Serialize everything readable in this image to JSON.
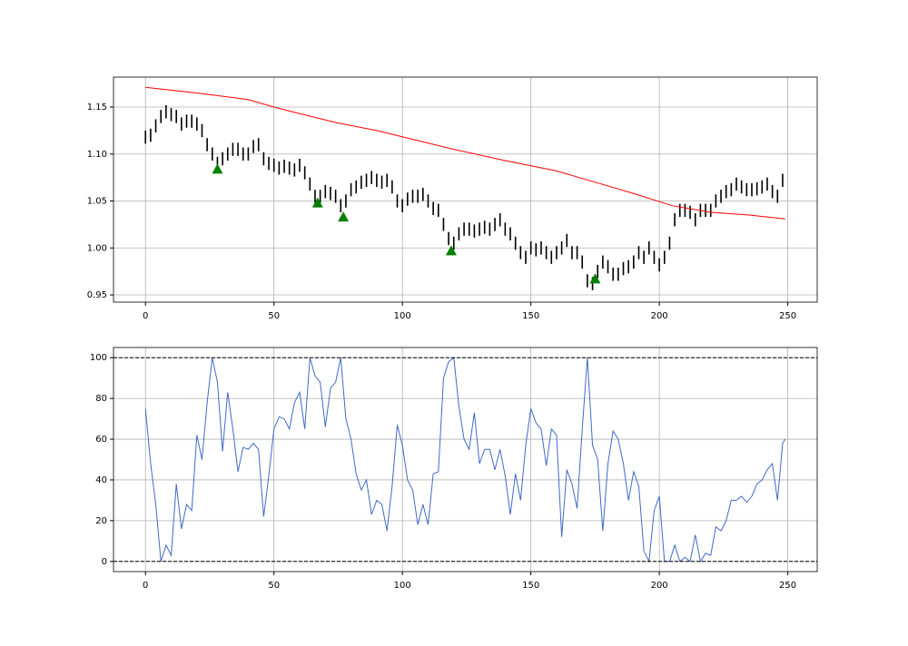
{
  "chart_data": [
    {
      "type": "ohlc",
      "color": "#000000",
      "x": [
        0,
        2,
        4,
        6,
        8,
        10,
        12,
        14,
        16,
        18,
        20,
        22,
        24,
        26,
        28,
        30,
        32,
        34,
        36,
        38,
        40,
        42,
        44,
        46,
        48,
        50,
        52,
        54,
        56,
        58,
        60,
        62,
        64,
        66,
        68,
        70,
        72,
        74,
        76,
        78,
        80,
        82,
        84,
        86,
        88,
        90,
        92,
        94,
        96,
        98,
        100,
        102,
        104,
        106,
        108,
        110,
        112,
        114,
        116,
        118,
        120,
        122,
        124,
        126,
        128,
        130,
        132,
        134,
        136,
        138,
        140,
        142,
        144,
        146,
        148,
        150,
        152,
        154,
        156,
        158,
        160,
        162,
        164,
        166,
        168,
        170,
        172,
        174,
        176,
        178,
        180,
        182,
        184,
        186,
        188,
        190,
        192,
        194,
        196,
        198,
        200,
        202,
        204,
        206,
        208,
        210,
        212,
        214,
        216,
        218,
        220,
        222,
        224,
        226,
        228,
        230,
        232,
        234,
        236,
        238,
        240,
        242,
        244,
        246,
        248
      ],
      "low": [
        1.111,
        1.113,
        1.123,
        1.133,
        1.138,
        1.135,
        1.133,
        1.125,
        1.128,
        1.128,
        1.125,
        1.118,
        1.103,
        1.093,
        1.083,
        1.088,
        1.093,
        1.098,
        1.098,
        1.093,
        1.093,
        1.101,
        1.103,
        1.088,
        1.083,
        1.081,
        1.078,
        1.08,
        1.078,
        1.076,
        1.081,
        1.073,
        1.061,
        1.048,
        1.048,
        1.053,
        1.051,
        1.048,
        1.038,
        1.043,
        1.055,
        1.058,
        1.063,
        1.065,
        1.068,
        1.065,
        1.063,
        1.065,
        1.058,
        1.043,
        1.038,
        1.045,
        1.048,
        1.048,
        1.05,
        1.043,
        1.035,
        1.033,
        1.018,
        1.003,
        0.998,
        1.008,
        1.013,
        1.013,
        1.011,
        1.013,
        1.015,
        1.013,
        1.018,
        1.023,
        1.013,
        1.008,
        0.998,
        0.988,
        0.983,
        0.993,
        0.991,
        0.993,
        0.988,
        0.983,
        0.988,
        0.993,
        1.001,
        0.988,
        0.988,
        0.978,
        0.958,
        0.955,
        0.968,
        0.978,
        0.973,
        0.965,
        0.965,
        0.971,
        0.973,
        0.978,
        0.988,
        0.983,
        0.993,
        0.983,
        0.975,
        0.983,
        0.998,
        1.023,
        1.033,
        1.033,
        1.031,
        1.023,
        1.033,
        1.033,
        1.033,
        1.043,
        1.048,
        1.053,
        1.055,
        1.061,
        1.058,
        1.055,
        1.055,
        1.056,
        1.058,
        1.061,
        1.053,
        1.048,
        1.065
      ],
      "high": [
        1.125,
        1.127,
        1.137,
        1.147,
        1.152,
        1.149,
        1.147,
        1.139,
        1.142,
        1.142,
        1.139,
        1.132,
        1.117,
        1.107,
        1.097,
        1.102,
        1.107,
        1.112,
        1.112,
        1.107,
        1.107,
        1.115,
        1.117,
        1.102,
        1.097,
        1.095,
        1.092,
        1.094,
        1.092,
        1.09,
        1.095,
        1.087,
        1.075,
        1.062,
        1.062,
        1.067,
        1.065,
        1.062,
        1.052,
        1.057,
        1.069,
        1.072,
        1.077,
        1.079,
        1.082,
        1.079,
        1.077,
        1.079,
        1.072,
        1.057,
        1.052,
        1.059,
        1.062,
        1.062,
        1.064,
        1.057,
        1.049,
        1.047,
        1.032,
        1.017,
        1.012,
        1.022,
        1.027,
        1.027,
        1.025,
        1.027,
        1.029,
        1.027,
        1.032,
        1.037,
        1.027,
        1.022,
        1.012,
        1.002,
        0.997,
        1.007,
        1.005,
        1.007,
        1.002,
        0.997,
        1.002,
        1.007,
        1.015,
        1.002,
        1.002,
        0.992,
        0.972,
        0.969,
        0.982,
        0.992,
        0.987,
        0.979,
        0.979,
        0.985,
        0.987,
        0.992,
        1.002,
        0.997,
        1.007,
        0.997,
        0.989,
        0.997,
        1.012,
        1.037,
        1.047,
        1.047,
        1.045,
        1.037,
        1.047,
        1.047,
        1.047,
        1.057,
        1.062,
        1.067,
        1.069,
        1.075,
        1.072,
        1.069,
        1.069,
        1.07,
        1.072,
        1.075,
        1.067,
        1.062,
        1.079
      ],
      "line": {
        "color": "#ff0000",
        "x": [
          0,
          20,
          40,
          50,
          60,
          75,
          90,
          105,
          120,
          140,
          160,
          175,
          190,
          205,
          220,
          235,
          249
        ],
        "values": [
          1.171,
          1.165,
          1.158,
          1.15,
          1.143,
          1.133,
          1.125,
          1.115,
          1.105,
          1.093,
          1.082,
          1.07,
          1.058,
          1.045,
          1.038,
          1.035,
          1.031
        ]
      },
      "signals": {
        "color": "#008000",
        "x": [
          28,
          67,
          77,
          119,
          175
        ],
        "values": [
          1.084,
          1.048,
          1.033,
          0.997,
          0.967
        ]
      },
      "xlim": [
        -12.45,
        261.45
      ],
      "ylim": [
        0.9423,
        1.1819
      ],
      "xticks": [
        0,
        50,
        100,
        150,
        200,
        250
      ],
      "yticks": [
        0.95,
        {
          "value": 1.0,
          "label": "1.00"
        },
        1.05,
        {
          "value": 1.1,
          "label": "1.10"
        },
        1.15
      ],
      "grid": true
    },
    {
      "type": "line",
      "color": "#4169c8",
      "x": [
        0,
        2,
        4,
        6,
        8,
        10,
        12,
        14,
        16,
        18,
        20,
        22,
        24,
        26,
        28,
        30,
        32,
        34,
        36,
        38,
        40,
        42,
        44,
        46,
        48,
        50,
        52,
        54,
        56,
        58,
        60,
        62,
        64,
        66,
        68,
        70,
        72,
        74,
        76,
        78,
        80,
        82,
        84,
        86,
        88,
        90,
        92,
        94,
        96,
        98,
        100,
        102,
        104,
        106,
        108,
        110,
        112,
        114,
        116,
        118,
        120,
        122,
        124,
        126,
        128,
        130,
        132,
        134,
        136,
        138,
        140,
        142,
        144,
        146,
        148,
        150,
        152,
        154,
        156,
        158,
        160,
        162,
        164,
        166,
        168,
        170,
        172,
        174,
        176,
        178,
        180,
        182,
        184,
        186,
        188,
        190,
        192,
        194,
        196,
        198,
        200,
        202,
        204,
        206,
        208,
        210,
        212,
        214,
        216,
        218,
        220,
        222,
        224,
        226,
        228,
        230,
        232,
        234,
        236,
        238,
        240,
        242,
        244,
        246,
        248,
        249
      ],
      "values": [
        75,
        48,
        28,
        0,
        8,
        3,
        38,
        16,
        28,
        25,
        62,
        50,
        78,
        100,
        88,
        54,
        83,
        65,
        44,
        56,
        55,
        58,
        55,
        22,
        42,
        65,
        71,
        70,
        65,
        78,
        83,
        65,
        100,
        91,
        88,
        66,
        85,
        88,
        100,
        70,
        60,
        43,
        35,
        40,
        23,
        30,
        28,
        15,
        37,
        67,
        57,
        40,
        35,
        18,
        28,
        18,
        43,
        44,
        90,
        98,
        100,
        76,
        60,
        55,
        73,
        48,
        55,
        55,
        45,
        55,
        42,
        23,
        43,
        30,
        57,
        75,
        68,
        65,
        47,
        65,
        62,
        12,
        45,
        38,
        26,
        65,
        100,
        57,
        50,
        15,
        48,
        64,
        60,
        48,
        30,
        44,
        37,
        5,
        0,
        25,
        32,
        0,
        0,
        8,
        0,
        2,
        0,
        13,
        0,
        4,
        3,
        17,
        15,
        20,
        30,
        30,
        32,
        29,
        32,
        38,
        40,
        45,
        48,
        30,
        58,
        60
      ],
      "hlines": [
        0,
        100
      ],
      "xlim": [
        -12.45,
        261.45
      ],
      "ylim": [
        -5,
        105
      ],
      "xticks": [
        0,
        50,
        100,
        150,
        200,
        250
      ],
      "yticks": [
        0,
        20,
        40,
        60,
        80,
        100
      ],
      "grid": true
    }
  ]
}
